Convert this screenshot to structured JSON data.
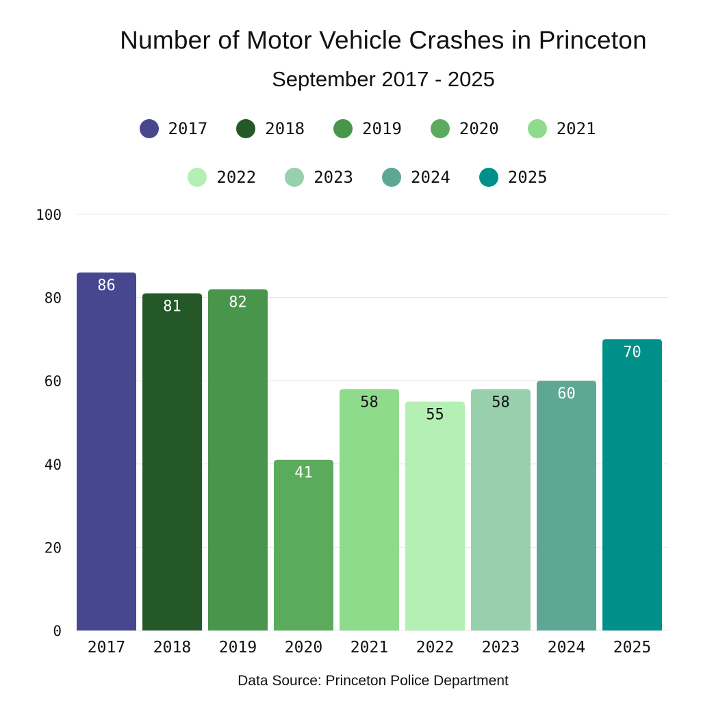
{
  "chart_data": {
    "type": "bar",
    "title": "Number of Motor Vehicle Crashes in Princeton",
    "subtitle": "September 2017 - 2025",
    "categories": [
      "2017",
      "2018",
      "2019",
      "2020",
      "2021",
      "2022",
      "2023",
      "2024",
      "2025"
    ],
    "values": [
      86,
      81,
      82,
      41,
      58,
      55,
      58,
      60,
      70
    ],
    "colors": [
      "#46478f",
      "#245828",
      "#48954b",
      "#5aac5c",
      "#8edb8c",
      "#b4f0b4",
      "#98cfad",
      "#5ea893",
      "#00908a"
    ],
    "label_colors": [
      "#ffffff",
      "#ffffff",
      "#ffffff",
      "#ffffff",
      "#111111",
      "#111111",
      "#111111",
      "#ffffff",
      "#ffffff"
    ],
    "xlabel": "",
    "ylabel": "",
    "ylim": [
      0,
      100
    ],
    "yticks": [
      "0",
      "20",
      "40",
      "60",
      "80",
      "100"
    ],
    "grid": true,
    "legend": {
      "placement": "top-center",
      "entries": [
        "2017",
        "2018",
        "2019",
        "2020",
        "2021",
        "2022",
        "2023",
        "2024",
        "2025"
      ]
    },
    "data_labels": true,
    "source": "Data Source: Princeton Police Department"
  }
}
